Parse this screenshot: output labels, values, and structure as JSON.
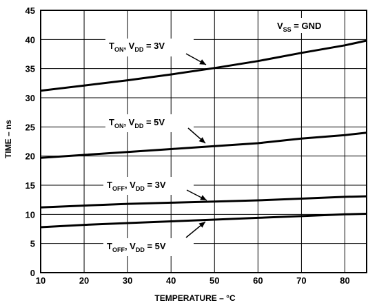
{
  "chart_data": {
    "type": "line",
    "title": "",
    "xlabel": "TEMPERATURE – °C",
    "ylabel": "TIME – ns",
    "xlim": [
      10,
      85
    ],
    "ylim": [
      0,
      45
    ],
    "xticks": [
      10,
      20,
      30,
      40,
      50,
      60,
      70,
      80
    ],
    "yticks": [
      0,
      5,
      10,
      15,
      20,
      25,
      30,
      35,
      40,
      45
    ],
    "grid": true,
    "legend": "none",
    "series": [
      {
        "id": "ton-3v",
        "label": {
          "main": "T",
          "sub1": "ON",
          "mid": ", V",
          "sub2": "DD",
          "tail": " = 3V"
        },
        "x": [
          10,
          20,
          30,
          40,
          50,
          60,
          70,
          80,
          85
        ],
        "y": [
          31.2,
          32.1,
          33.0,
          34.0,
          35.1,
          36.3,
          37.7,
          39.0,
          39.8
        ]
      },
      {
        "id": "ton-5v",
        "label": {
          "main": "T",
          "sub1": "ON",
          "mid": ", V",
          "sub2": "DD",
          "tail": " = 5V"
        },
        "x": [
          10,
          20,
          30,
          40,
          50,
          60,
          70,
          80,
          85
        ],
        "y": [
          19.7,
          20.2,
          20.7,
          21.2,
          21.7,
          22.2,
          23.0,
          23.6,
          24.0
        ]
      },
      {
        "id": "toff-3v",
        "label": {
          "main": "T",
          "sub1": "OFF",
          "mid": ", V",
          "sub2": "DD",
          "tail": " = 3V"
        },
        "x": [
          10,
          20,
          30,
          40,
          50,
          60,
          70,
          80,
          85
        ],
        "y": [
          11.2,
          11.5,
          11.8,
          12.0,
          12.2,
          12.4,
          12.7,
          13.0,
          13.1
        ]
      },
      {
        "id": "toff-5v",
        "label": {
          "main": "T",
          "sub1": "OFF",
          "mid": ", V",
          "sub2": "DD",
          "tail": " = 5V"
        },
        "x": [
          10,
          20,
          30,
          40,
          50,
          60,
          70,
          80,
          85
        ],
        "y": [
          7.8,
          8.2,
          8.5,
          8.8,
          9.1,
          9.4,
          9.7,
          10.0,
          10.1
        ]
      }
    ],
    "annotations": {
      "vss": {
        "main": "V",
        "sub": "SS",
        "tail": " = GND"
      }
    }
  }
}
